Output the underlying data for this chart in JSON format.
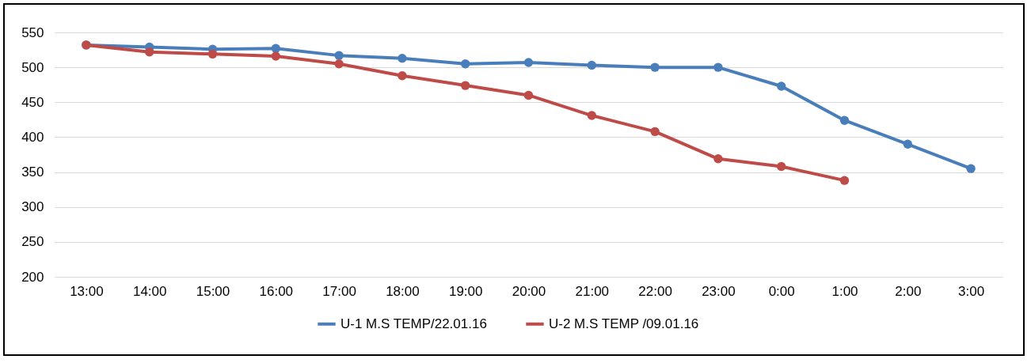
{
  "chart_data": {
    "type": "line",
    "categories": [
      "13:00",
      "14:00",
      "15:00",
      "16:00",
      "17:00",
      "18:00",
      "19:00",
      "20:00",
      "21:00",
      "22:00",
      "23:00",
      "0:00",
      "1:00",
      "2:00",
      "3:00"
    ],
    "series": [
      {
        "name": "U-1 M.S TEMP/22.01.16",
        "color": "#4a7ebb",
        "values": [
          532,
          529,
          526,
          527,
          517,
          513,
          505,
          507,
          503,
          500,
          500,
          473,
          424,
          390,
          355
        ]
      },
      {
        "name": "U-2 M.S TEMP /09.01.16",
        "color": "#be4b48",
        "values": [
          532,
          522,
          519,
          516,
          505,
          488,
          474,
          460,
          431,
          408,
          369,
          358,
          338,
          null,
          null
        ]
      }
    ],
    "ylim": [
      200,
      550
    ],
    "yticks": [
      200,
      250,
      300,
      350,
      400,
      450,
      500,
      550
    ],
    "grid": "y",
    "legend": "bottom",
    "marker": "circle",
    "line_style": "solid"
  }
}
